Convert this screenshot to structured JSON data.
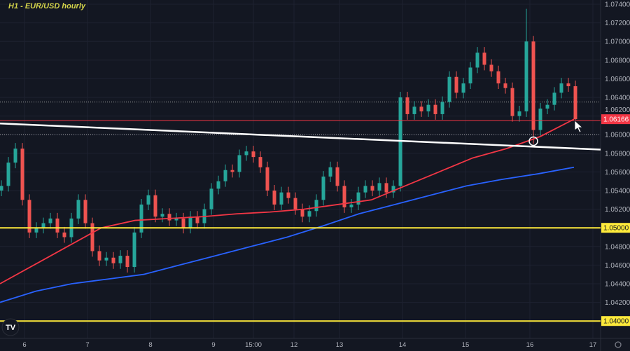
{
  "title": "H1 - EUR/USD hourly",
  "chart_data": {
    "type": "candlestick",
    "title": "H1 - EUR/USD hourly",
    "ylim": [
      1.0395,
      1.0745
    ],
    "y_ticks": [
      "1.07400",
      "1.07200",
      "1.07000",
      "1.06800",
      "1.06600",
      "1.06400",
      "1.06200",
      "1.06000",
      "1.05800",
      "1.05600",
      "1.05400",
      "1.05200",
      "1.05000",
      "1.04800",
      "1.04600",
      "1.04400",
      "1.04200",
      "1.04000"
    ],
    "x_ticks": [
      "6",
      "7",
      "8",
      "9",
      "15:00",
      "12",
      "13",
      "14",
      "15",
      "16",
      "17"
    ],
    "grid": true,
    "closes": [
      1.0545,
      1.057,
      1.0585,
      1.053,
      1.0495,
      1.05,
      1.0505,
      1.051,
      1.0495,
      1.049,
      1.051,
      1.053,
      1.0505,
      1.0475,
      1.0465,
      1.0468,
      1.0462,
      1.047,
      1.0458,
      1.0495,
      1.0525,
      1.0535,
      1.0512,
      1.0515,
      1.0508,
      1.051,
      1.05,
      1.0512,
      1.0505,
      1.052,
      1.0542,
      1.055,
      1.0562,
      1.056,
      1.0578,
      1.0582,
      1.0576,
      1.0565,
      1.054,
      1.0525,
      1.0538,
      1.0532,
      1.052,
      1.0512,
      1.0518,
      1.053,
      1.0555,
      1.0565,
      1.0545,
      1.0522,
      1.0525,
      1.0538,
      1.0545,
      1.054,
      1.0548,
      1.0538,
      1.0545,
      1.064,
      1.0622,
      1.063,
      1.0625,
      1.0632,
      1.0622,
      1.0635,
      1.0662,
      1.0645,
      1.0655,
      1.0672,
      1.0688,
      1.0675,
      1.0668,
      1.0655,
      1.065,
      1.062,
      1.0625,
      1.07,
      1.0605,
      1.0628,
      1.0632,
      1.0645,
      1.0655,
      1.0652,
      1.06166
    ],
    "series": [
      {
        "color": "#f23645",
        "values": [
          1.044,
          1.046,
          1.048,
          1.05,
          1.0508,
          1.051,
          1.0512,
          1.0515,
          1.0517,
          1.052,
          1.0525,
          1.053,
          1.0545,
          1.056,
          1.0575,
          1.0585,
          1.0598,
          1.06166
        ]
      },
      {
        "color": "#2962ff",
        "values": [
          1.042,
          1.0432,
          1.044,
          1.0445,
          1.045,
          1.046,
          1.047,
          1.048,
          1.049,
          1.0502,
          1.0515,
          1.0525,
          1.0535,
          1.0545,
          1.0552,
          1.0558,
          1.0565
        ]
      }
    ],
    "levels": [
      {
        "price": 1.05,
        "label": "1.05000",
        "color": "#ffeb3b"
      },
      {
        "price": 1.04,
        "label": "1.04000",
        "color": "#ffeb3b"
      }
    ],
    "dotted_levels": [
      1.0635,
      1.06
    ],
    "current_price": {
      "price": 1.06166,
      "label": "1.06166",
      "color": "#f23645"
    },
    "trendline": {
      "from": 1.0612,
      "to": 1.0584,
      "color": "#ffffff"
    },
    "up_color": "#26a69a",
    "down_color": "#ef5350"
  },
  "logo": "TV"
}
